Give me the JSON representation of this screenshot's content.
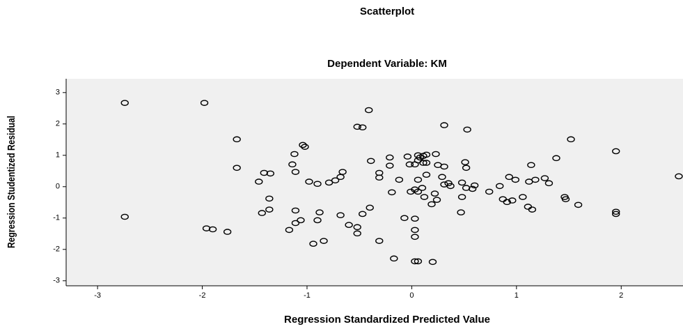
{
  "chart_data": {
    "type": "scatter",
    "title": "Scatterplot",
    "subtitle": "Dependent Variable: KM",
    "x_label": "Regression Standardized Predicted Value",
    "y_label": "Regression Studentized Residual",
    "color": "#000000",
    "xlim": [
      -3.3,
      2.59
    ],
    "ylim": [
      -3.16,
      3.44
    ],
    "xticks": [
      -3,
      -2,
      -1,
      0,
      1,
      2
    ],
    "yticks": [
      -3,
      -2,
      -1,
      0,
      1,
      2,
      3
    ],
    "x": [
      -2.74,
      -1.98,
      -2.74,
      -1.67,
      -1.67,
      -0.41,
      -0.52,
      -0.47,
      0.31,
      0.53,
      1.95,
      1.52,
      1.38,
      -1.41,
      -1.35,
      -1.46,
      -1.36,
      -1.36,
      -1.43,
      -1.04,
      -1.02,
      -1.12,
      -1.14,
      -1.11,
      -0.98,
      -0.9,
      -0.79,
      -0.73,
      -0.68,
      -0.66,
      -0.39,
      -0.31,
      -0.31,
      -1.11,
      -1.06,
      -1.11,
      -1.17,
      -1.96,
      -1.9,
      -1.76,
      -0.88,
      -0.9,
      -0.68,
      -0.47,
      -0.4,
      -0.6,
      -0.52,
      -0.52,
      -0.31,
      -0.84,
      -0.94,
      -0.17,
      0.03,
      0.06,
      0.2,
      -0.21,
      -0.12,
      -0.19,
      -0.21,
      -0.04,
      -0.02,
      0.03,
      0.06,
      0.08,
      0.11,
      0.14,
      0.06,
      0.11,
      0.14,
      0.23,
      0.25,
      0.31,
      0.29,
      0.14,
      0.06,
      0.03,
      0.06,
      0.1,
      -0.01,
      0.12,
      0.22,
      0.24,
      0.19,
      -0.07,
      0.03,
      0.03,
      0.03,
      0.31,
      0.35,
      0.37,
      0.51,
      0.52,
      0.48,
      0.52,
      0.58,
      0.6,
      0.48,
      0.47,
      0.74,
      0.84,
      0.87,
      0.91,
      0.96,
      0.93,
      0.99,
      1.06,
      1.12,
      1.18,
      1.14,
      1.11,
      1.15,
      1.27,
      1.31,
      1.46,
      1.47,
      1.59,
      1.95,
      1.95,
      2.55
    ],
    "values": [
      2.67,
      2.67,
      -0.96,
      1.51,
      0.6,
      2.44,
      1.91,
      1.89,
      1.96,
      1.82,
      1.13,
      1.51,
      0.91,
      0.44,
      0.42,
      0.16,
      -0.38,
      -0.73,
      -0.84,
      1.33,
      1.27,
      1.04,
      0.71,
      0.47,
      0.16,
      0.09,
      0.13,
      0.2,
      0.31,
      0.47,
      0.82,
      0.44,
      0.29,
      -0.76,
      -1.07,
      -1.16,
      -1.38,
      -1.33,
      -1.36,
      -1.44,
      -0.82,
      -1.07,
      -0.91,
      -0.87,
      -0.67,
      -1.22,
      -1.29,
      -1.49,
      -1.73,
      -1.73,
      -1.82,
      -2.29,
      -2.38,
      -2.38,
      -2.4,
      0.93,
      0.22,
      -0.18,
      0.67,
      0.96,
      0.71,
      0.71,
      0.84,
      0.93,
      0.98,
      1.02,
      1.0,
      0.76,
      0.76,
      1.04,
      0.69,
      0.64,
      0.31,
      0.38,
      0.22,
      -0.09,
      -0.16,
      -0.04,
      -0.16,
      -0.33,
      -0.22,
      -0.42,
      -0.56,
      -1.0,
      -1.02,
      -1.38,
      -1.6,
      0.07,
      0.11,
      0.02,
      0.78,
      0.6,
      0.13,
      -0.04,
      -0.07,
      0.04,
      -0.33,
      -0.82,
      -0.16,
      0.02,
      -0.4,
      -0.49,
      -0.44,
      0.31,
      0.22,
      -0.33,
      0.16,
      0.22,
      0.69,
      -0.64,
      -0.73,
      0.27,
      0.11,
      -0.33,
      -0.4,
      -0.58,
      -0.8,
      -0.87,
      0.33
    ]
  }
}
